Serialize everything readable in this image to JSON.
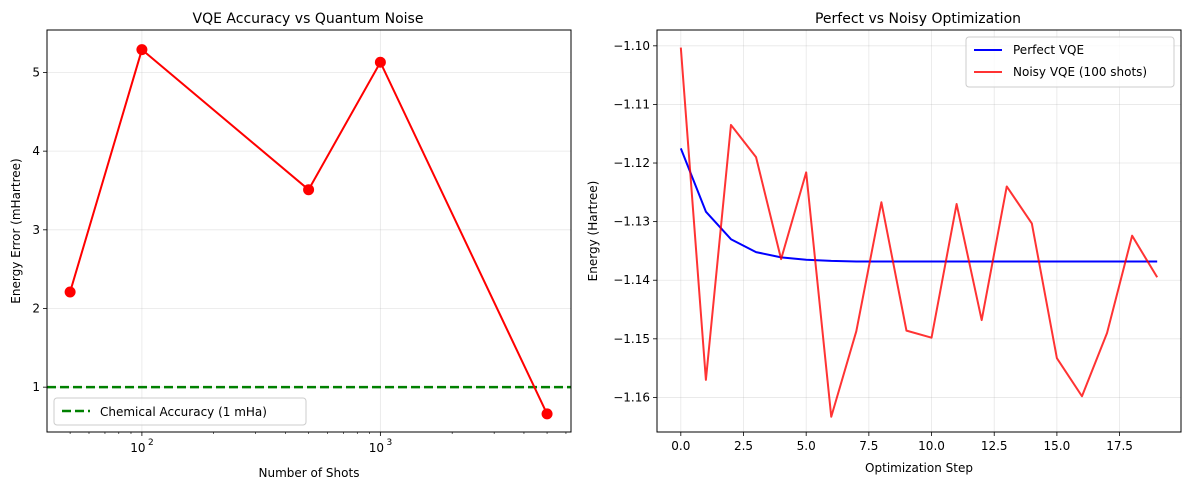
{
  "chart_data": [
    {
      "type": "line",
      "title": "VQE Accuracy vs Quantum Noise",
      "xlabel": "Number of Shots",
      "ylabel": "Energy Error (mHartree)",
      "xscale": "log",
      "xlim": [
        40,
        6300
      ],
      "ylim": [
        0.43,
        5.54
      ],
      "xticks": [
        {
          "value": 100,
          "base": "10",
          "exp": "2"
        },
        {
          "value": 1000,
          "base": "10",
          "exp": "3"
        }
      ],
      "yticks": [
        1,
        2,
        3,
        4,
        5
      ],
      "grid": true,
      "series": [
        {
          "name": "Energy Error",
          "color": "#ff0000",
          "marker": "circle",
          "x": [
            50,
            100,
            500,
            1000,
            5000
          ],
          "y": [
            2.21,
            5.29,
            3.51,
            5.13,
            0.66
          ]
        }
      ],
      "hlines": [
        {
          "y": 1.0,
          "label": "Chemical Accuracy (1 mHa)",
          "color": "#008000",
          "style": "dashed"
        }
      ],
      "legend": {
        "placement": "lower-left",
        "entries": [
          "Chemical Accuracy (1 mHa)"
        ]
      }
    },
    {
      "type": "line",
      "title": "Perfect vs Noisy Optimization",
      "xlabel": "Optimization Step",
      "ylabel": "Energy (Hartree)",
      "xlim": [
        -0.95,
        19.95
      ],
      "ylim": [
        -1.1659,
        -1.0973
      ],
      "xticks": [
        {
          "value": 0,
          "label": "0.0"
        },
        {
          "value": 2.5,
          "label": "2.5"
        },
        {
          "value": 5,
          "label": "5.0"
        },
        {
          "value": 7.5,
          "label": "7.5"
        },
        {
          "value": 10,
          "label": "10.0"
        },
        {
          "value": 12.5,
          "label": "12.5"
        },
        {
          "value": 15,
          "label": "15.0"
        },
        {
          "value": 17.5,
          "label": "17.5"
        }
      ],
      "yticks": [
        {
          "value": -1.1,
          "label": "−1.10"
        },
        {
          "value": -1.11,
          "label": "−1.11"
        },
        {
          "value": -1.12,
          "label": "−1.12"
        },
        {
          "value": -1.13,
          "label": "−1.13"
        },
        {
          "value": -1.14,
          "label": "−1.14"
        },
        {
          "value": -1.15,
          "label": "−1.15"
        },
        {
          "value": -1.16,
          "label": "−1.16"
        }
      ],
      "grid": true,
      "x": [
        0,
        1,
        2,
        3,
        4,
        5,
        6,
        7,
        8,
        9,
        10,
        11,
        12,
        13,
        14,
        15,
        16,
        17,
        18,
        19
      ],
      "series": [
        {
          "name": "Perfect VQE",
          "color": "#0000ff",
          "opacity": 1.0,
          "values": [
            -1.1175,
            -1.1283,
            -1.133,
            -1.1352,
            -1.1361,
            -1.1365,
            -1.1367,
            -1.1368,
            -1.1368,
            -1.1368,
            -1.1368,
            -1.1368,
            -1.1368,
            -1.1368,
            -1.1368,
            -1.1368,
            -1.1368,
            -1.1368,
            -1.1368,
            -1.1368
          ]
        },
        {
          "name": "Noisy VQE (100 shots)",
          "color": "#ff0000",
          "opacity": 0.8,
          "values": [
            -1.1003,
            -1.157,
            -1.1135,
            -1.119,
            -1.1364,
            -1.1216,
            -1.1633,
            -1.1487,
            -1.1267,
            -1.1486,
            -1.1498,
            -1.127,
            -1.1468,
            -1.124,
            -1.1303,
            -1.1533,
            -1.1598,
            -1.149,
            -1.1324,
            -1.1395
          ]
        }
      ],
      "legend": {
        "placement": "upper-right",
        "entries": [
          "Perfect VQE",
          "Noisy VQE (100 shots)"
        ]
      }
    }
  ]
}
